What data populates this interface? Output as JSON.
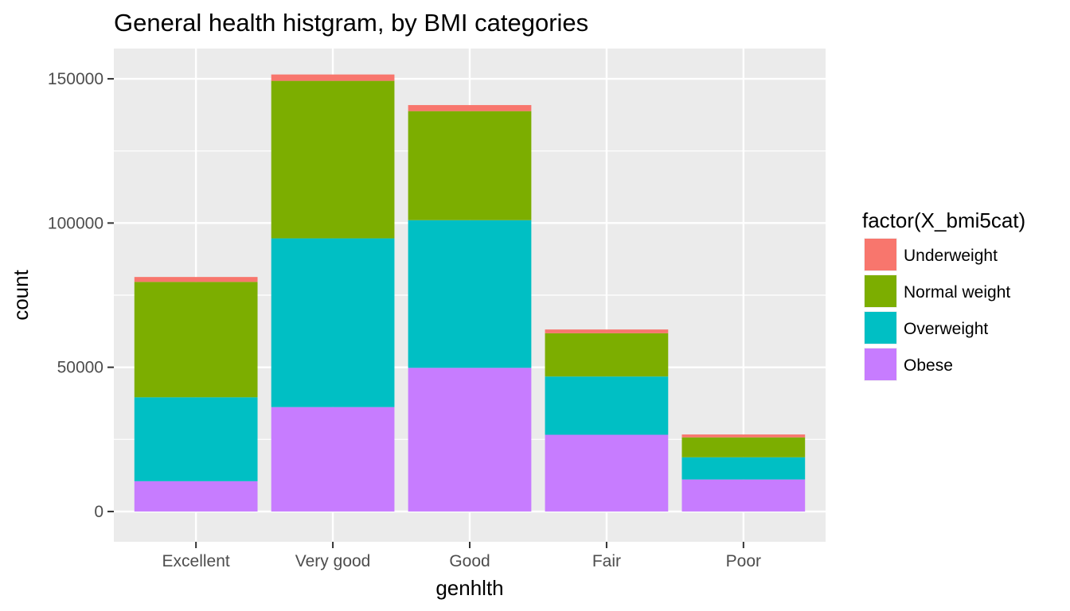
{
  "chart_data": {
    "type": "bar",
    "stacked": true,
    "title": "General health histgram, by BMI categories",
    "xlabel": "genhlth",
    "ylabel": "count",
    "categories": [
      "Excellent",
      "Very good",
      "Good",
      "Fair",
      "Poor"
    ],
    "ylim": [
      -10500,
      160500
    ],
    "yticks": [
      0,
      50000,
      100000,
      150000
    ],
    "ytick_labels": [
      "0",
      "50000",
      "100000",
      "150000"
    ],
    "legend_title": "factor(X_bmi5cat)",
    "legend_position": "right",
    "grid": true,
    "series": [
      {
        "name": "Obese",
        "color": "#C77CFF",
        "values": [
          10500,
          36200,
          49800,
          26600,
          11100
        ]
      },
      {
        "name": "Overweight",
        "color": "#00BFC4",
        "values": [
          29100,
          58500,
          51200,
          20200,
          7700
        ]
      },
      {
        "name": "Normal weight",
        "color": "#7CAE00",
        "values": [
          40000,
          54600,
          37800,
          15000,
          6900
        ]
      },
      {
        "name": "Underweight",
        "color": "#F8766D",
        "values": [
          1700,
          2200,
          2100,
          1300,
          1000
        ]
      }
    ],
    "legend_order": [
      "Underweight",
      "Normal weight",
      "Overweight",
      "Obese"
    ]
  }
}
